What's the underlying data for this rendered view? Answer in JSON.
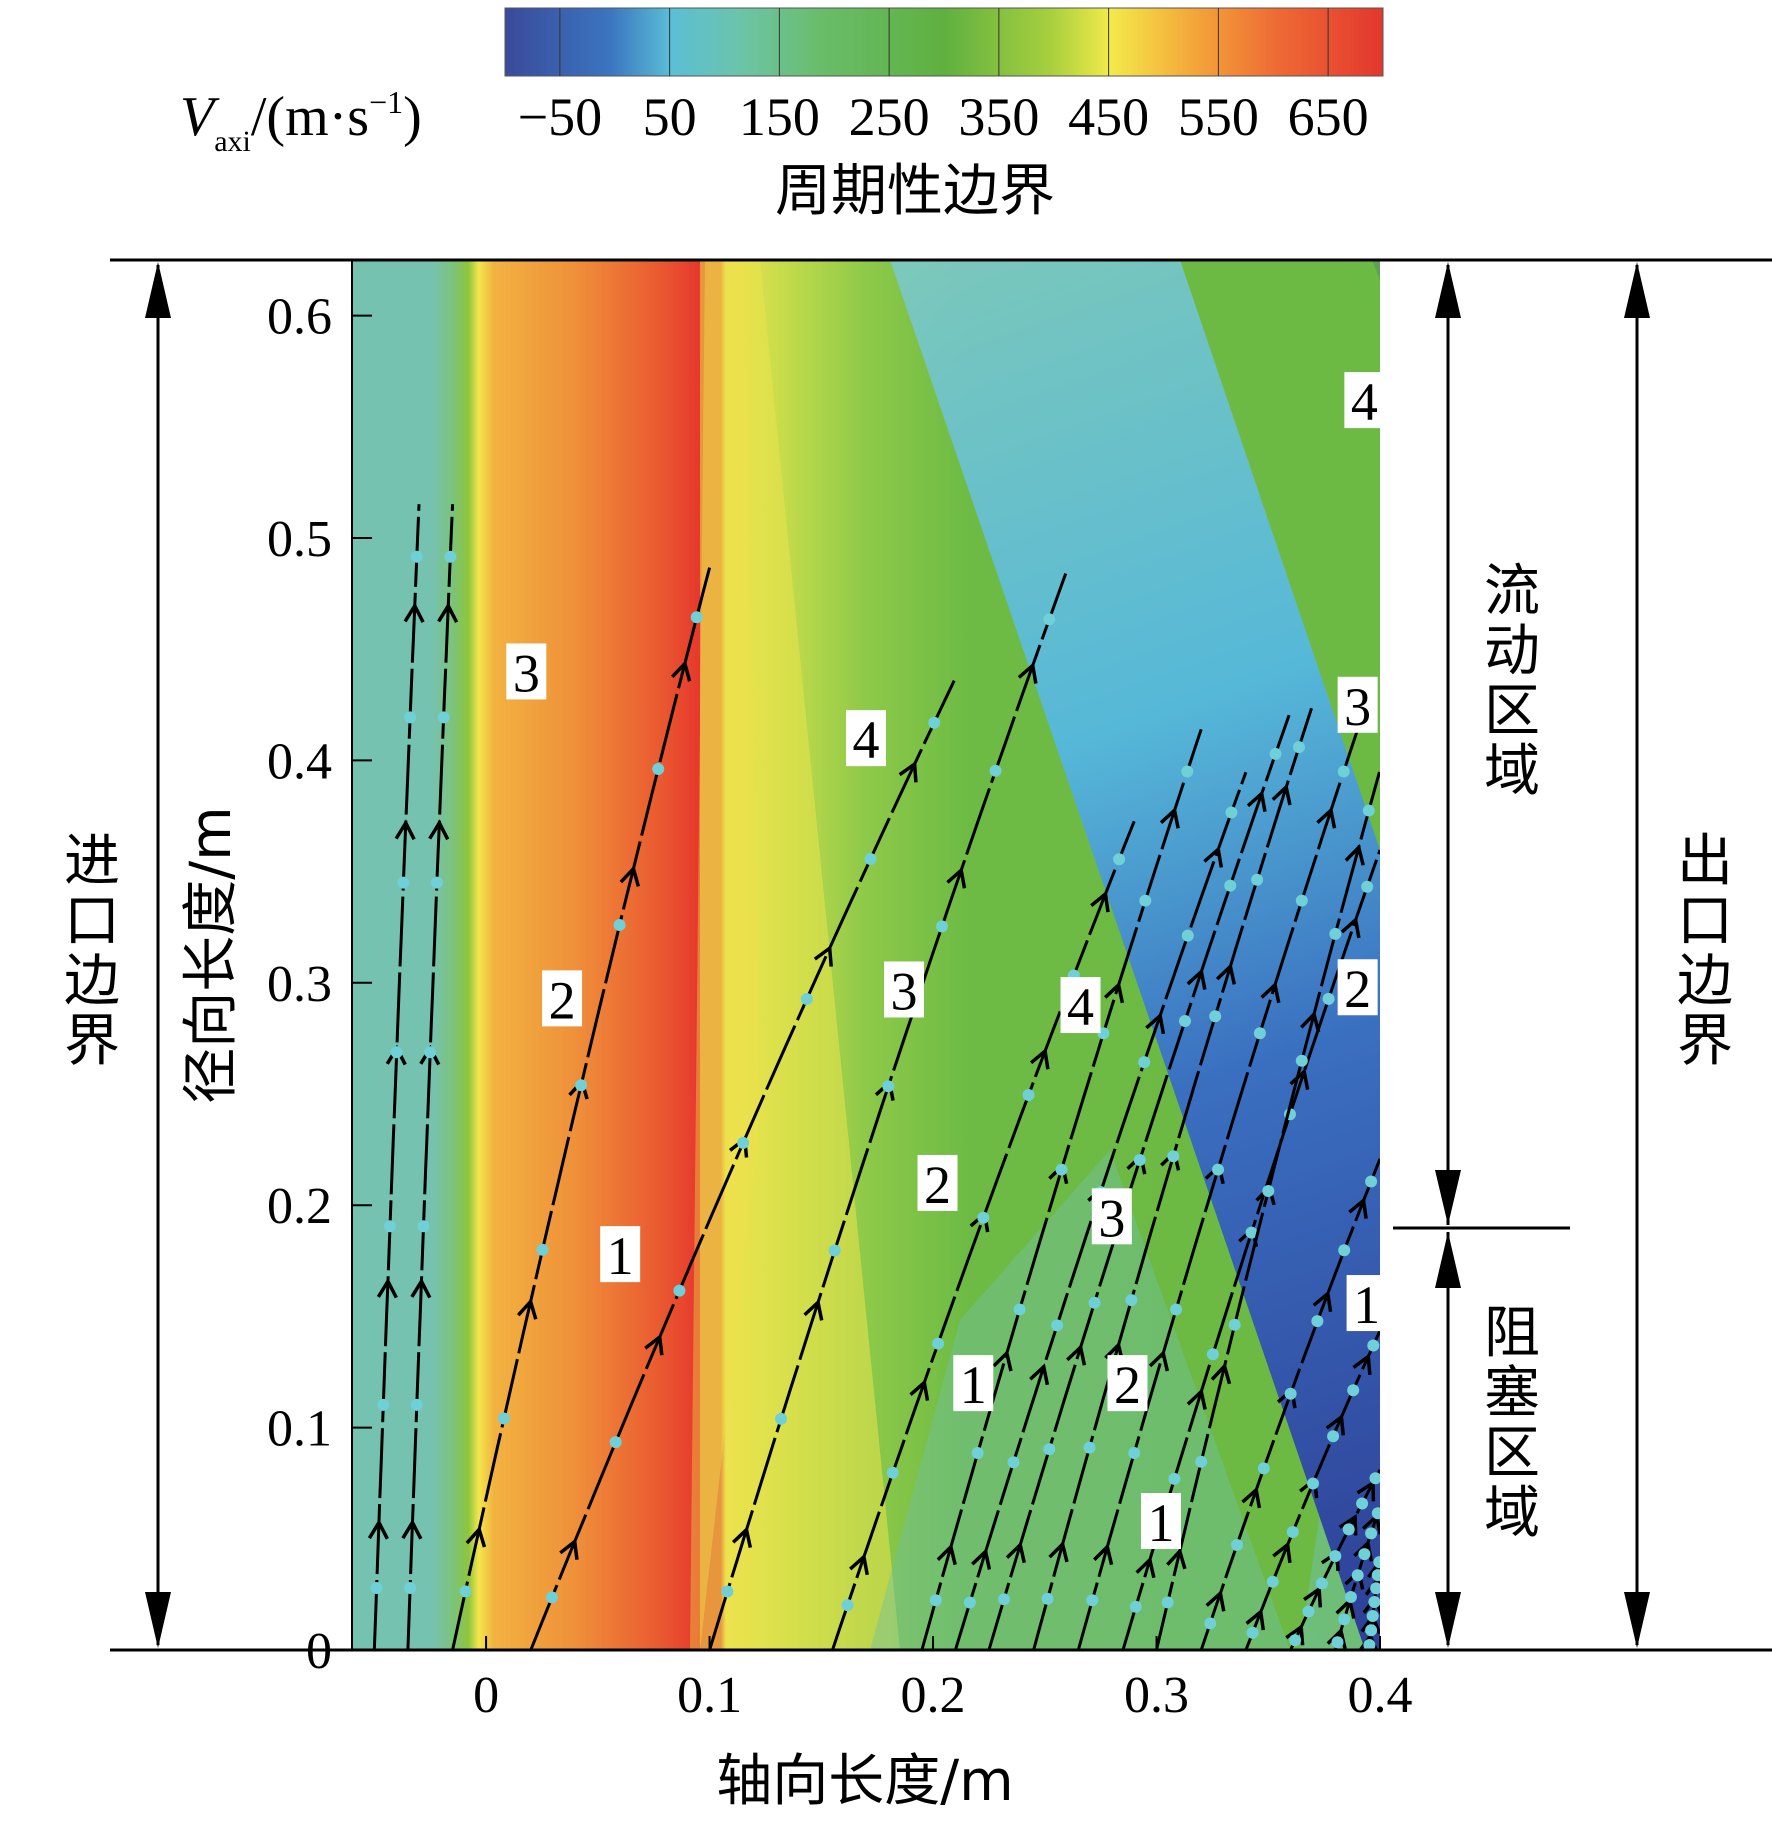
{
  "chart_data": {
    "type": "heatmap",
    "title": "周期性边界",
    "colorbar": {
      "label_var": "V",
      "label_sub": "axi",
      "label_unit": "/(m·s",
      "label_exp": "−1",
      "label_close": ")",
      "ticks": [
        "−50",
        "50",
        "150",
        "250",
        "350",
        "450",
        "550",
        "650"
      ],
      "tick_values": [
        -50,
        50,
        150,
        250,
        350,
        450,
        550,
        650
      ],
      "range": [
        -100,
        700
      ]
    },
    "xlabel": "轴向长度/m",
    "ylabel": "径向长度/m",
    "xlim": [
      -0.06,
      0.4
    ],
    "ylim": [
      0,
      0.625
    ],
    "xticks": [
      {
        "value": 0.0,
        "label": "0"
      },
      {
        "value": 0.1,
        "label": "0.1"
      },
      {
        "value": 0.2,
        "label": "0.2"
      },
      {
        "value": 0.3,
        "label": "0.3"
      },
      {
        "value": 0.4,
        "label": "0.4"
      }
    ],
    "yticks": [
      {
        "value": 0.0,
        "label": "0"
      },
      {
        "value": 0.1,
        "label": "0.1"
      },
      {
        "value": 0.2,
        "label": "0.2"
      },
      {
        "value": 0.3,
        "label": "0.3"
      },
      {
        "value": 0.4,
        "label": "0.4"
      },
      {
        "value": 0.5,
        "label": "0.5"
      },
      {
        "value": 0.6,
        "label": "0.6"
      }
    ],
    "streamlines": [
      {
        "x0": -0.05,
        "x1": -0.03,
        "slope": 28
      },
      {
        "x0": -0.035,
        "x1": -0.015,
        "slope": 28
      },
      {
        "x0": -0.015,
        "x1": 0.1,
        "slope": 4.6
      },
      {
        "x0": 0.02,
        "x1": 0.21,
        "slope": 2.5
      },
      {
        "x0": 0.1,
        "x1": 0.26,
        "slope": 3.3
      },
      {
        "x0": 0.155,
        "x1": 0.29,
        "slope": 3.0
      },
      {
        "x0": 0.195,
        "x1": 0.32,
        "slope": 3.6
      },
      {
        "x0": 0.21,
        "x1": 0.34,
        "slope": 3.3
      },
      {
        "x0": 0.225,
        "x1": 0.36,
        "slope": 3.4
      },
      {
        "x0": 0.245,
        "x1": 0.37,
        "slope": 3.7
      },
      {
        "x0": 0.265,
        "x1": 0.39,
        "slope": 3.6
      },
      {
        "x0": 0.285,
        "x1": 0.4,
        "slope": 3.4
      },
      {
        "x0": 0.3,
        "x1": 0.4,
        "slope": 4.3
      },
      {
        "x0": 0.32,
        "x1": 0.4,
        "slope": 3.0
      },
      {
        "x0": 0.34,
        "x1": 0.4,
        "slope": 2.6
      },
      {
        "x0": 0.36,
        "x1": 0.4,
        "slope": 2.2
      },
      {
        "x0": 0.38,
        "x1": 0.4,
        "slope": 3.5
      },
      {
        "x0": 0.395,
        "x1": 0.4,
        "slope": 9.0
      }
    ],
    "annotations": [
      {
        "text": "3",
        "x": 0.018,
        "y": 0.44
      },
      {
        "text": "2",
        "x": 0.034,
        "y": 0.293
      },
      {
        "text": "1",
        "x": 0.06,
        "y": 0.178
      },
      {
        "text": "4",
        "x": 0.17,
        "y": 0.41
      },
      {
        "text": "3",
        "x": 0.187,
        "y": 0.297
      },
      {
        "text": "2",
        "x": 0.202,
        "y": 0.21
      },
      {
        "text": "1",
        "x": 0.218,
        "y": 0.12
      },
      {
        "text": "4",
        "x": 0.266,
        "y": 0.29
      },
      {
        "text": "3",
        "x": 0.28,
        "y": 0.195
      },
      {
        "text": "2",
        "x": 0.287,
        "y": 0.12
      },
      {
        "text": "1",
        "x": 0.302,
        "y": 0.058
      },
      {
        "text": "4",
        "x": 0.393,
        "y": 0.562
      },
      {
        "text": "3",
        "x": 0.39,
        "y": 0.425
      },
      {
        "text": "2",
        "x": 0.39,
        "y": 0.298
      },
      {
        "text": "1",
        "x": 0.394,
        "y": 0.156
      }
    ],
    "side_labels": {
      "inlet": "进口边界",
      "outlet": "出口边界",
      "flow_region": "流动区域",
      "blocked_region": "阻塞区域"
    }
  }
}
